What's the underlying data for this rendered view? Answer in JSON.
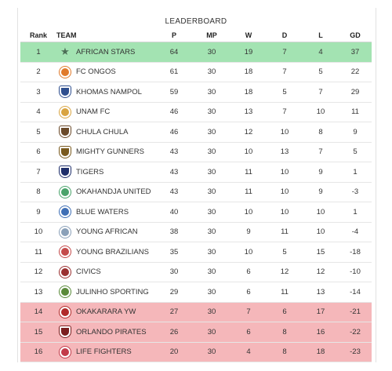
{
  "leaderboard": {
    "title": "LEADERBOARD",
    "columns": {
      "rank": "Rank",
      "team": "TEAM",
      "p": "P",
      "mp": "MP",
      "w": "W",
      "d": "D",
      "l": "L",
      "gd": "GD"
    },
    "rows": [
      {
        "rank": "1",
        "team": "AFRICAN STARS",
        "p": "64",
        "mp": "30",
        "w": "19",
        "d": "7",
        "l": "4",
        "gd": "37",
        "logo": "star-icon",
        "logo_color": "#4d6e57"
      },
      {
        "rank": "2",
        "team": "FC ONGOS",
        "p": "61",
        "mp": "30",
        "w": "18",
        "d": "7",
        "l": "5",
        "gd": "22",
        "logo": "crest-icon",
        "logo_color": "#e07a2b"
      },
      {
        "rank": "3",
        "team": "KHOMAS NAMPOL",
        "p": "59",
        "mp": "30",
        "w": "18",
        "d": "5",
        "l": "7",
        "gd": "29",
        "logo": "shield-icon",
        "logo_color": "#2f4f8f"
      },
      {
        "rank": "4",
        "team": "UNAM FC",
        "p": "46",
        "mp": "30",
        "w": "13",
        "d": "7",
        "l": "10",
        "gd": "11",
        "logo": "crest-icon",
        "logo_color": "#d9a441"
      },
      {
        "rank": "5",
        "team": "CHULA CHULA",
        "p": "46",
        "mp": "30",
        "w": "12",
        "d": "10",
        "l": "8",
        "gd": "9",
        "logo": "shield-icon",
        "logo_color": "#6b4a2a"
      },
      {
        "rank": "6",
        "team": "MIGHTY GUNNERS",
        "p": "43",
        "mp": "30",
        "w": "10",
        "d": "13",
        "l": "7",
        "gd": "5",
        "logo": "shield-icon",
        "logo_color": "#7a5a1e"
      },
      {
        "rank": "7",
        "team": "TIGERS",
        "p": "43",
        "mp": "30",
        "w": "11",
        "d": "10",
        "l": "9",
        "gd": "1",
        "logo": "shield-icon",
        "logo_color": "#1f2f6b"
      },
      {
        "rank": "8",
        "team": "OKAHANDJA UNITED",
        "p": "43",
        "mp": "30",
        "w": "11",
        "d": "10",
        "l": "9",
        "gd": "-3",
        "logo": "crest-icon",
        "logo_color": "#4aa36b"
      },
      {
        "rank": "9",
        "team": "BLUE WATERS",
        "p": "40",
        "mp": "30",
        "w": "10",
        "d": "10",
        "l": "10",
        "gd": "1",
        "logo": "crest-icon",
        "logo_color": "#3f6fb5"
      },
      {
        "rank": "10",
        "team": "YOUNG AFRICAN",
        "p": "38",
        "mp": "30",
        "w": "9",
        "d": "11",
        "l": "10",
        "gd": "-4",
        "logo": "crest-icon",
        "logo_color": "#8aa0b8"
      },
      {
        "rank": "11",
        "team": "YOUNG BRAZILIANS",
        "p": "35",
        "mp": "30",
        "w": "10",
        "d": "5",
        "l": "15",
        "gd": "-18",
        "logo": "crest-icon",
        "logo_color": "#c44a4a"
      },
      {
        "rank": "12",
        "team": "CIVICS",
        "p": "30",
        "mp": "30",
        "w": "6",
        "d": "12",
        "l": "12",
        "gd": "-10",
        "logo": "crest-icon",
        "logo_color": "#9a3030"
      },
      {
        "rank": "13",
        "team": "JULINHO SPORTING",
        "p": "29",
        "mp": "30",
        "w": "6",
        "d": "11",
        "l": "13",
        "gd": "-14",
        "logo": "crest-icon",
        "logo_color": "#5a8a3a"
      },
      {
        "rank": "14",
        "team": "OKAKARARA YW",
        "p": "27",
        "mp": "30",
        "w": "7",
        "d": "6",
        "l": "17",
        "gd": "-21",
        "logo": "crest-icon",
        "logo_color": "#b02a2a"
      },
      {
        "rank": "15",
        "team": "ORLANDO PIRATES",
        "p": "26",
        "mp": "30",
        "w": "6",
        "d": "8",
        "l": "16",
        "gd": "-22",
        "logo": "shield-icon",
        "logo_color": "#7a1f1f"
      },
      {
        "rank": "16",
        "team": "LIFE FIGHTERS",
        "p": "20",
        "mp": "30",
        "w": "4",
        "d": "8",
        "l": "18",
        "gd": "-23",
        "logo": "crest-icon",
        "logo_color": "#c23b4a"
      }
    ],
    "promotion_color": "#a3e3b2",
    "relegation_color": "#f5b7ba"
  }
}
